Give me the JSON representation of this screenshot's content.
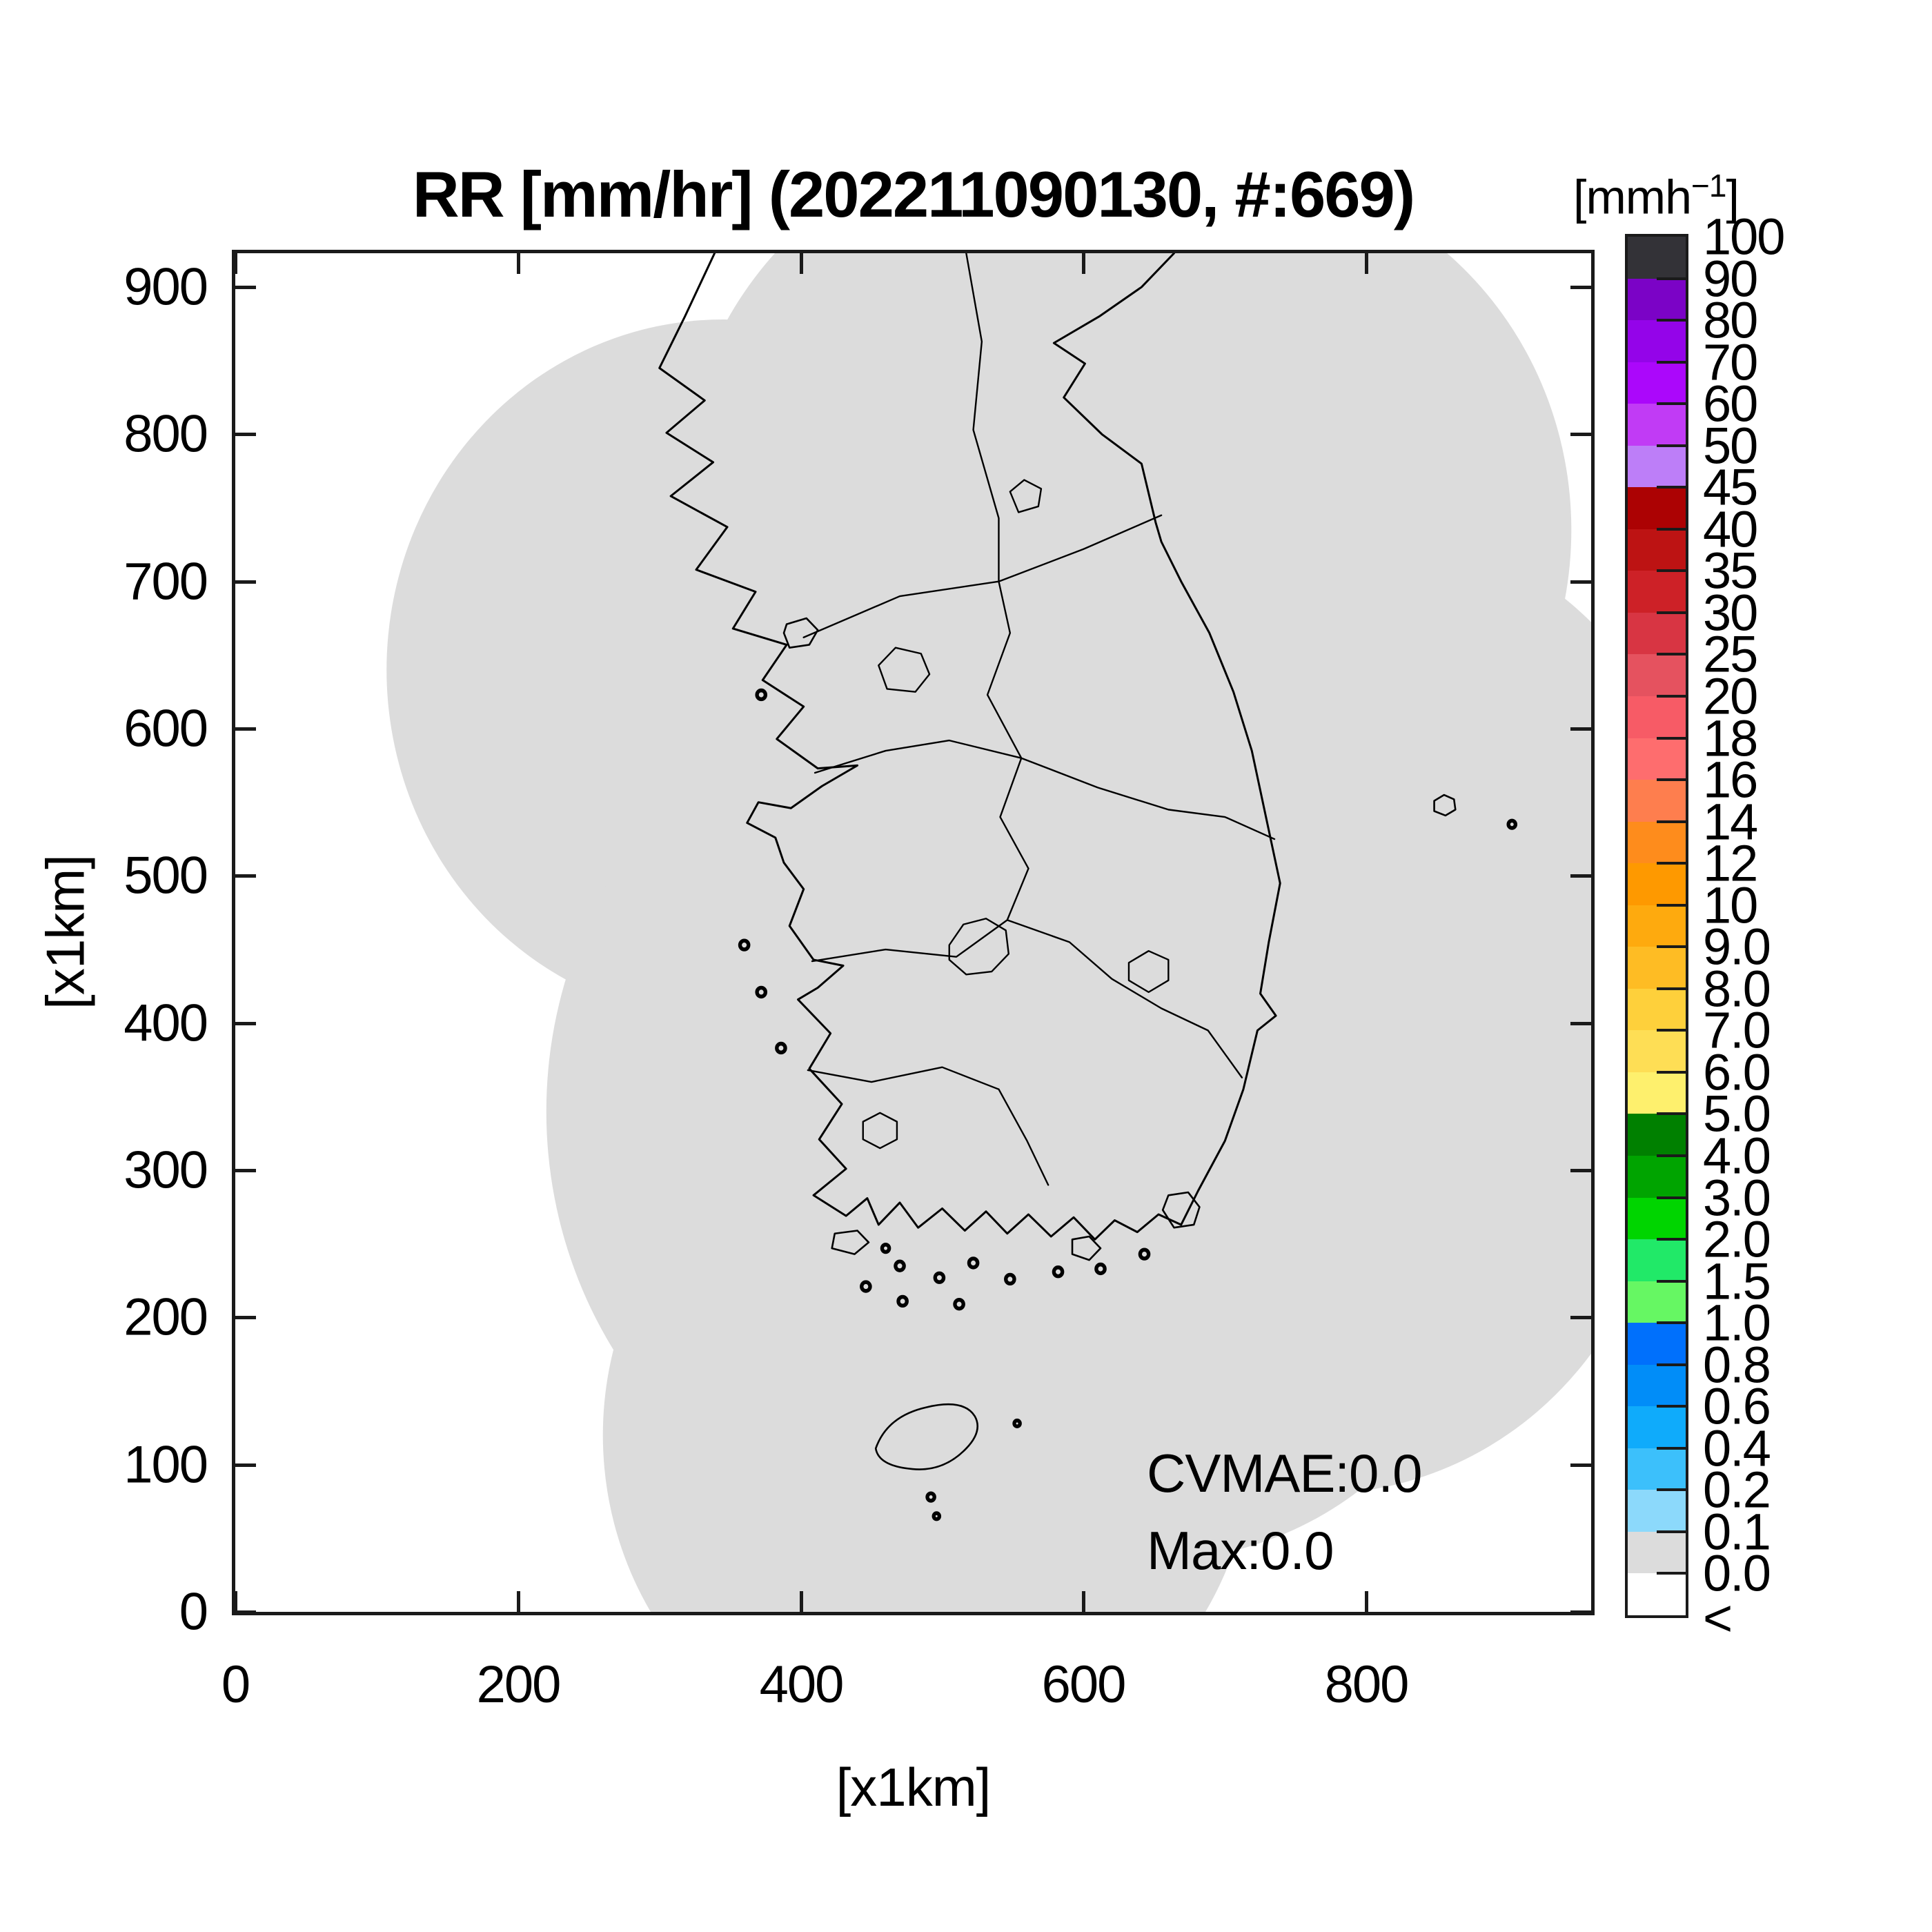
{
  "figure": {
    "title": "RR [mm/hr] (202211090130, #:669)",
    "stats": {
      "cvmae": "CVMAE:0.0",
      "max": "Max:0.0"
    }
  },
  "x_axis": {
    "label": "[x1km]",
    "tick_values": [
      0,
      200,
      400,
      600,
      800
    ],
    "range_max": 959
  },
  "y_axis": {
    "label": "[x1km]",
    "tick_values": [
      0,
      100,
      200,
      300,
      400,
      500,
      600,
      700,
      800,
      900
    ],
    "range_max": 923
  },
  "colorbar": {
    "unit_prefix": "[mmh",
    "unit_exponent": "−1",
    "unit_suffix": "]",
    "tick_labels": [
      "100",
      "90",
      "80",
      "70",
      "60",
      "50",
      "45",
      "40",
      "35",
      "30",
      "25",
      "20",
      "18",
      "16",
      "14",
      "12",
      "10",
      "9.0",
      "8.0",
      "7.0",
      "6.0",
      "5.0",
      "4.0",
      "3.0",
      "2.0",
      "1.5",
      "1.0",
      "0.8",
      "0.6",
      "0.4",
      "0.2",
      "0.1",
      "0.0",
      "<"
    ],
    "segment_colors": [
      "#333237",
      "#7b03c6",
      "#9404e9",
      "#ab07fb",
      "#c13bf5",
      "#bd7ef8",
      "#ac0203",
      "#bd1313",
      "#cd2127",
      "#d83543",
      "#e5525f",
      "#f75b66",
      "#fe6d6e",
      "#fe7e4e",
      "#fe8c1c",
      "#fe9900",
      "#feaa0e",
      "#febc24",
      "#fed03b",
      "#fede55",
      "#fef06d",
      "#008000",
      "#00a400",
      "#00d500",
      "#21e968",
      "#66f763",
      "#0070fc",
      "#018df8",
      "#0fabfb",
      "#3cc0fb",
      "#8cd9fb",
      "#dcdcdc",
      "#ffffff"
    ]
  },
  "map": {
    "coverage_fill": "#dcdcdc",
    "outline_stroke": "#000000",
    "frame_color": "#1a1a1a"
  },
  "chart_data": {
    "type": "heatmap",
    "title": "RR [mm/hr] (202211090130, #:669)",
    "variable": "RR",
    "unit": "mm/hr",
    "timestamp_label": "202211090130",
    "count_label": "#:669",
    "xlabel": "[x1km]",
    "ylabel": "[x1km]",
    "xlim": [
      0,
      959
    ],
    "ylim": [
      0,
      923
    ],
    "x_ticks": [
      0,
      200,
      400,
      600,
      800
    ],
    "y_ticks": [
      0,
      100,
      200,
      300,
      400,
      500,
      600,
      700,
      800,
      900
    ],
    "colorbar_unit": "mmh−1",
    "levels": [
      0.0,
      0.1,
      0.2,
      0.4,
      0.6,
      0.8,
      1.0,
      1.5,
      2.0,
      3.0,
      4.0,
      5.0,
      6.0,
      7.0,
      8.0,
      9.0,
      10,
      12,
      14,
      16,
      18,
      20,
      25,
      30,
      35,
      40,
      45,
      50,
      60,
      70,
      80,
      90,
      100
    ],
    "open_lower_bin_label": "<",
    "cvmae": 0.0,
    "max": 0.0,
    "field_summary": "Rain rate is 0.0 mm/hr everywhere inside the radar coverage area (gray 0.0–0.1 bin); outside coverage is blank/white",
    "legend_position": "right colorbar",
    "grid": false
  }
}
